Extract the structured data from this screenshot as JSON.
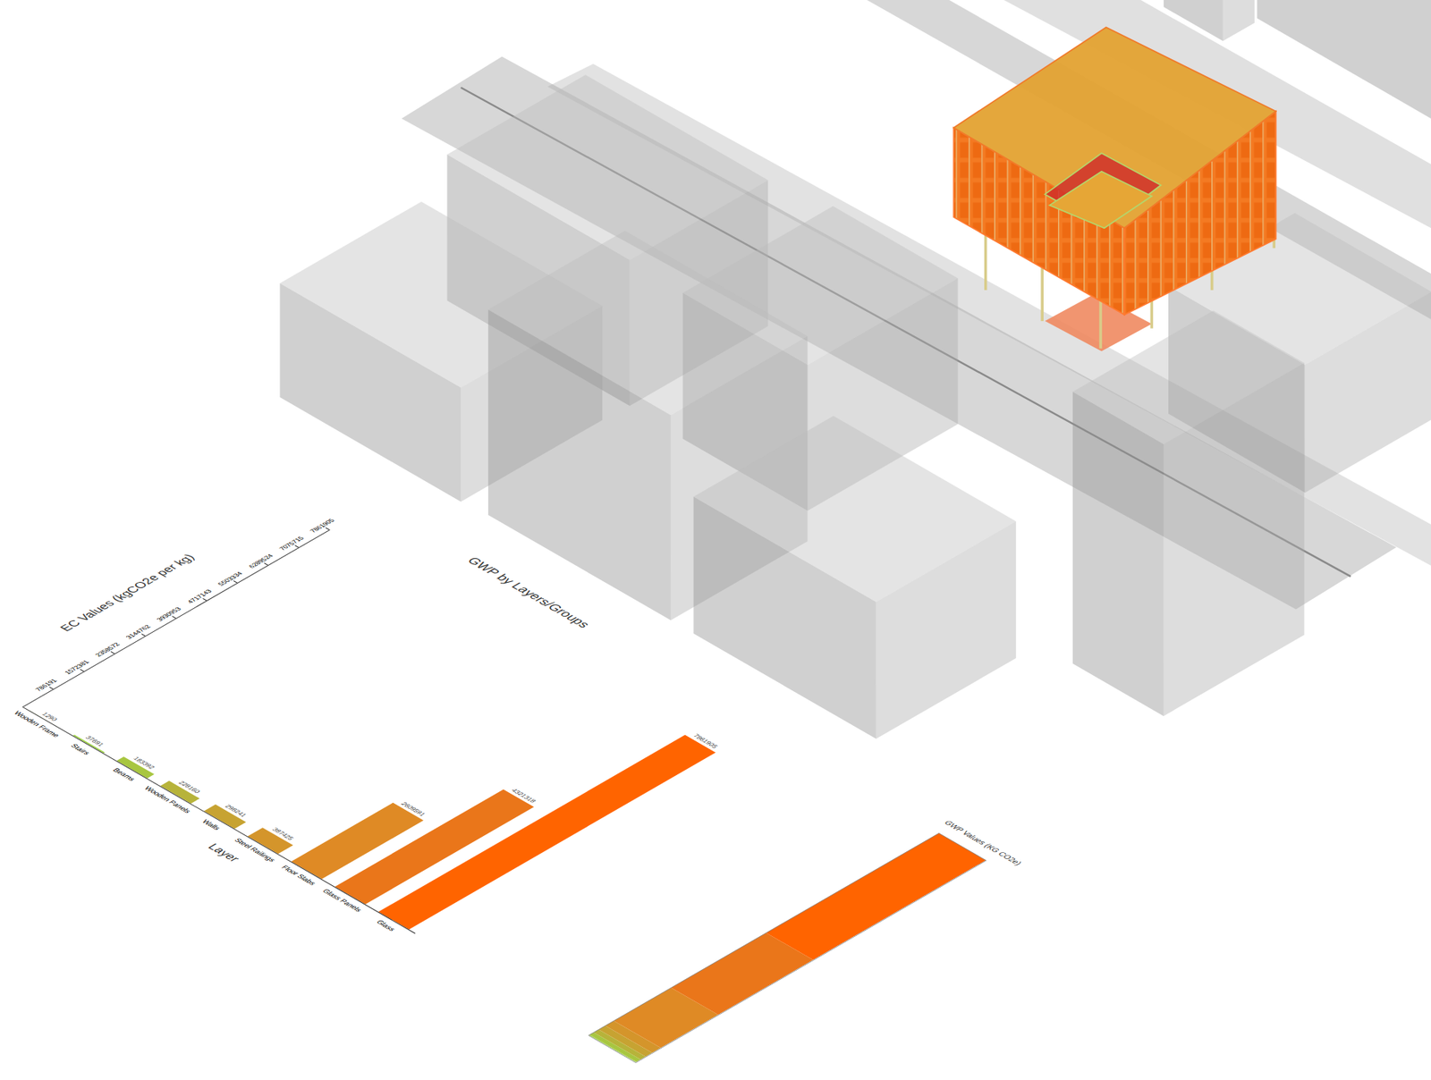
{
  "chart_data": [
    {
      "type": "bar",
      "title": "GWP by Layers/Groups",
      "xlabel": "Layer",
      "ylabel": "EC Values (kgCO2e per kg)",
      "categories": [
        "Wooden Frame",
        "Stairs",
        "Beams",
        "Wooden Panels",
        "Walls",
        "Steel Railings",
        "Floor Slabs",
        "Glass Panels",
        "Glass"
      ],
      "values": [
        1290,
        37691,
        183392,
        228160,
        298241,
        387425,
        2609591,
        4321318,
        7861905
      ],
      "colors": [
        "#a6d84a",
        "#9fd447",
        "#a8c640",
        "#b7b33a",
        "#c7a332",
        "#d4952b",
        "#df8a25",
        "#ea761a",
        "#ff6400"
      ],
      "ylim": [
        0,
        7861905
      ],
      "yticks": [
        786191,
        1572381,
        2358572,
        3144762,
        3930953,
        4717143,
        5503334,
        6289524,
        7075715,
        7861905
      ],
      "data_labels": true,
      "grid": false
    },
    {
      "type": "bar",
      "stacked": true,
      "ylabel": "GWP Values (KG CO2e)",
      "values": [
        1290,
        37691,
        183392,
        228160,
        298241,
        387425,
        2609591,
        4321318,
        7861905
      ],
      "colors": [
        "#a6d84a",
        "#9fd447",
        "#a8c640",
        "#b7b33a",
        "#c7a332",
        "#d4952b",
        "#df8a25",
        "#ea761a",
        "#ff6400"
      ],
      "ylim": [
        0,
        15929013
      ],
      "tick_labels": false,
      "data_labels": false
    }
  ]
}
